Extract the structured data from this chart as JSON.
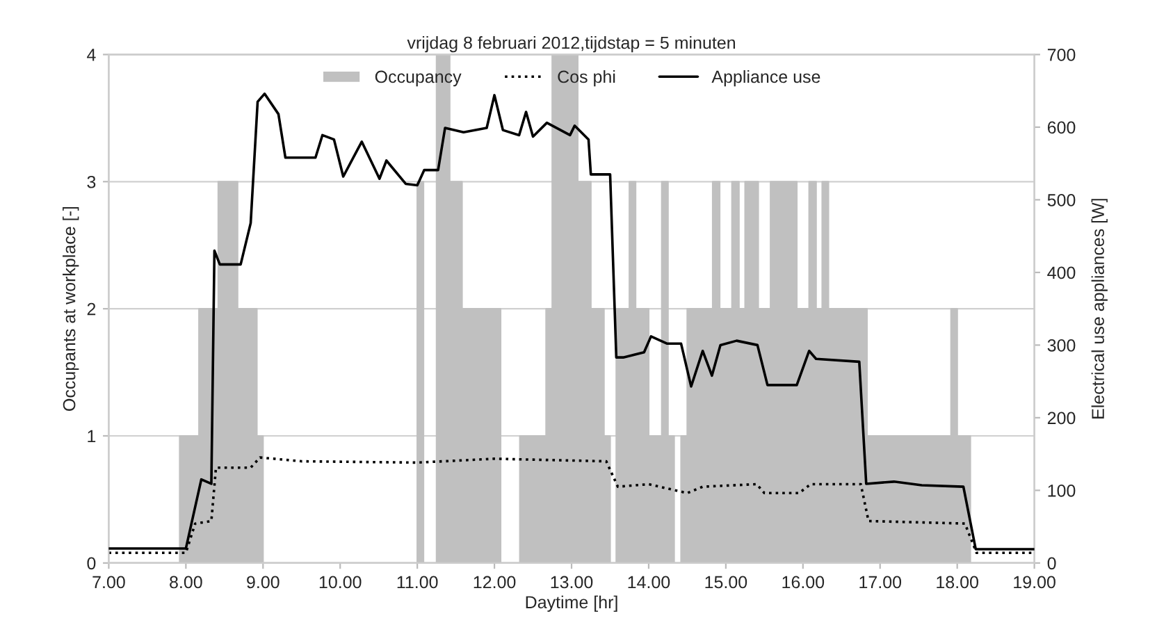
{
  "chart_data": {
    "type": "line",
    "title": "vrijdag 8 februari 2012,tijdstap = 5 minuten",
    "xlabel": "Daytime [hr]",
    "ylabel": "Occupants at workplace [-]",
    "y2label": "Electrical use appliances [W]",
    "xlim": [
      7,
      19
    ],
    "xticks": [
      {
        "value": 7,
        "label": "7.00"
      },
      {
        "value": 8,
        "label": "8.00"
      },
      {
        "value": 9,
        "label": "9.00"
      },
      {
        "value": 10,
        "label": "10.00"
      },
      {
        "value": 11,
        "label": "11.00"
      },
      {
        "value": 12,
        "label": "12.00"
      },
      {
        "value": 13,
        "label": "13.00"
      },
      {
        "value": 14,
        "label": "14.00"
      },
      {
        "value": 15,
        "label": "15.00"
      },
      {
        "value": 16,
        "label": "16.00"
      },
      {
        "value": 17,
        "label": "17.00"
      },
      {
        "value": 18,
        "label": "18.00"
      },
      {
        "value": 19,
        "label": "19.00"
      }
    ],
    "ylim": [
      0,
      4
    ],
    "yticks": [
      0,
      1,
      2,
      3,
      4
    ],
    "y2lim": [
      0,
      700
    ],
    "y2ticks": [
      0,
      100,
      200,
      300,
      400,
      500,
      600,
      700
    ],
    "grid": "y",
    "legend": "top",
    "series": [
      {
        "name": "Occupancy",
        "type": "area",
        "color": "#c0c0c0",
        "x": [
          7.0,
          7.92,
          7.92,
          8.17,
          8.17,
          8.42,
          8.42,
          8.67,
          8.67,
          8.92,
          8.92,
          9.0,
          9.0,
          11.0,
          11.0,
          11.08,
          11.08,
          11.25,
          11.25,
          11.42,
          11.42,
          11.58,
          11.58,
          12.08,
          12.08,
          12.33,
          12.33,
          12.67,
          12.67,
          12.75,
          12.75,
          13.08,
          13.08,
          13.25,
          13.25,
          13.42,
          13.42,
          13.5,
          13.5,
          13.58,
          13.58,
          13.75,
          13.75,
          13.83,
          13.83,
          14.0,
          14.0,
          14.17,
          14.17,
          14.25,
          14.25,
          14.33,
          14.33,
          14.42,
          14.42,
          14.5,
          14.5,
          14.83,
          14.83,
          14.92,
          14.92,
          15.08,
          15.08,
          15.17,
          15.17,
          15.25,
          15.25,
          15.42,
          15.42,
          15.58,
          15.58,
          15.92,
          15.92,
          16.08,
          16.08,
          16.17,
          16.17,
          16.25,
          16.25,
          16.33,
          16.33,
          16.83,
          16.83,
          17.92,
          17.92,
          18.0,
          18.0,
          18.17,
          18.17,
          19.0
        ],
        "values": [
          0,
          0,
          1,
          1,
          2,
          2,
          3,
          3,
          2,
          2,
          1,
          1,
          0,
          0,
          3,
          3,
          0,
          0,
          4,
          4,
          3,
          3,
          2,
          2,
          0,
          0,
          1,
          1,
          2,
          2,
          4,
          4,
          3,
          3,
          2,
          2,
          1,
          1,
          0,
          0,
          2,
          2,
          3,
          3,
          2,
          2,
          1,
          1,
          3,
          3,
          1,
          1,
          0,
          0,
          1,
          1,
          2,
          2,
          3,
          3,
          2,
          2,
          3,
          3,
          2,
          2,
          3,
          3,
          2,
          2,
          3,
          3,
          2,
          2,
          3,
          3,
          2,
          2,
          3,
          3,
          2,
          2,
          1,
          1,
          2,
          2,
          1,
          1,
          0,
          0
        ]
      },
      {
        "name": "Cos phi",
        "color": "#000000",
        "line_style": "dotted",
        "x": [
          7.0,
          8.0,
          8.12,
          8.33,
          8.39,
          8.84,
          8.96,
          9.5,
          11.0,
          12.0,
          13.45,
          13.6,
          14.0,
          14.5,
          14.7,
          15.4,
          15.5,
          15.95,
          16.1,
          16.75,
          16.85,
          18.1,
          18.25,
          19.0
        ],
        "values": [
          0.08,
          0.08,
          0.31,
          0.33,
          0.75,
          0.75,
          0.83,
          0.8,
          0.79,
          0.82,
          0.8,
          0.6,
          0.62,
          0.55,
          0.6,
          0.62,
          0.55,
          0.55,
          0.62,
          0.62,
          0.33,
          0.31,
          0.08,
          0.08
        ]
      },
      {
        "name": "Appliance use",
        "axis": "y2",
        "color": "#000000",
        "line_style": "solid",
        "x": [
          7.0,
          8.0,
          8.2,
          8.33,
          8.37,
          8.44,
          8.71,
          8.84,
          8.93,
          9.02,
          9.2,
          9.29,
          9.68,
          9.77,
          9.92,
          10.04,
          10.28,
          10.51,
          10.6,
          10.85,
          11.0,
          11.09,
          11.27,
          11.36,
          11.6,
          11.9,
          12.0,
          12.11,
          12.32,
          12.41,
          12.5,
          12.68,
          12.98,
          13.04,
          13.22,
          13.25,
          13.5,
          13.58,
          13.67,
          13.94,
          14.03,
          14.24,
          14.42,
          14.55,
          14.7,
          14.82,
          14.93,
          15.14,
          15.41,
          15.54,
          15.92,
          16.08,
          16.17,
          16.73,
          16.82,
          17.18,
          17.54,
          18.08,
          18.24,
          19.0
        ],
        "values": [
          20,
          20,
          115,
          109,
          430,
          411,
          411,
          468,
          635,
          646,
          618,
          558,
          558,
          589,
          583,
          532,
          580,
          529,
          554,
          522,
          520,
          541,
          541,
          599,
          593,
          599,
          644,
          596,
          589,
          621,
          587,
          606,
          589,
          602,
          583,
          535,
          535,
          283,
          283,
          290,
          312,
          302,
          302,
          243,
          292,
          258,
          300,
          306,
          300,
          245,
          245,
          292,
          281,
          277,
          109,
          112,
          107,
          105,
          19,
          19
        ]
      }
    ]
  }
}
